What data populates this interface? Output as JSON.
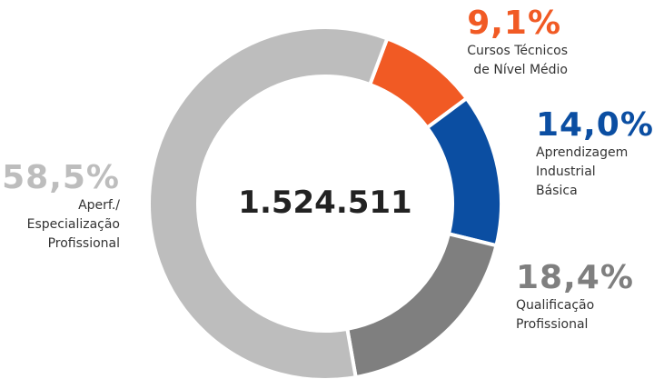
{
  "chart_data": {
    "type": "donut",
    "center_text": "1.524.511",
    "categories": [
      "Cursos Técnicos\nde Nível Médio",
      "Aprendizagem\nIndustrial\nBásica",
      "Qualificação\nProfissional",
      "Aperf./\nEspecialização\nProfissional"
    ],
    "values": [
      9.1,
      14.0,
      18.4,
      58.5
    ],
    "value_labels": [
      "9,1%",
      "14,0%",
      "18,4%",
      "58,5%"
    ],
    "colors": [
      "#f15a24",
      "#0b4ea2",
      "#7f7f7f",
      "#bdbdbd"
    ]
  }
}
